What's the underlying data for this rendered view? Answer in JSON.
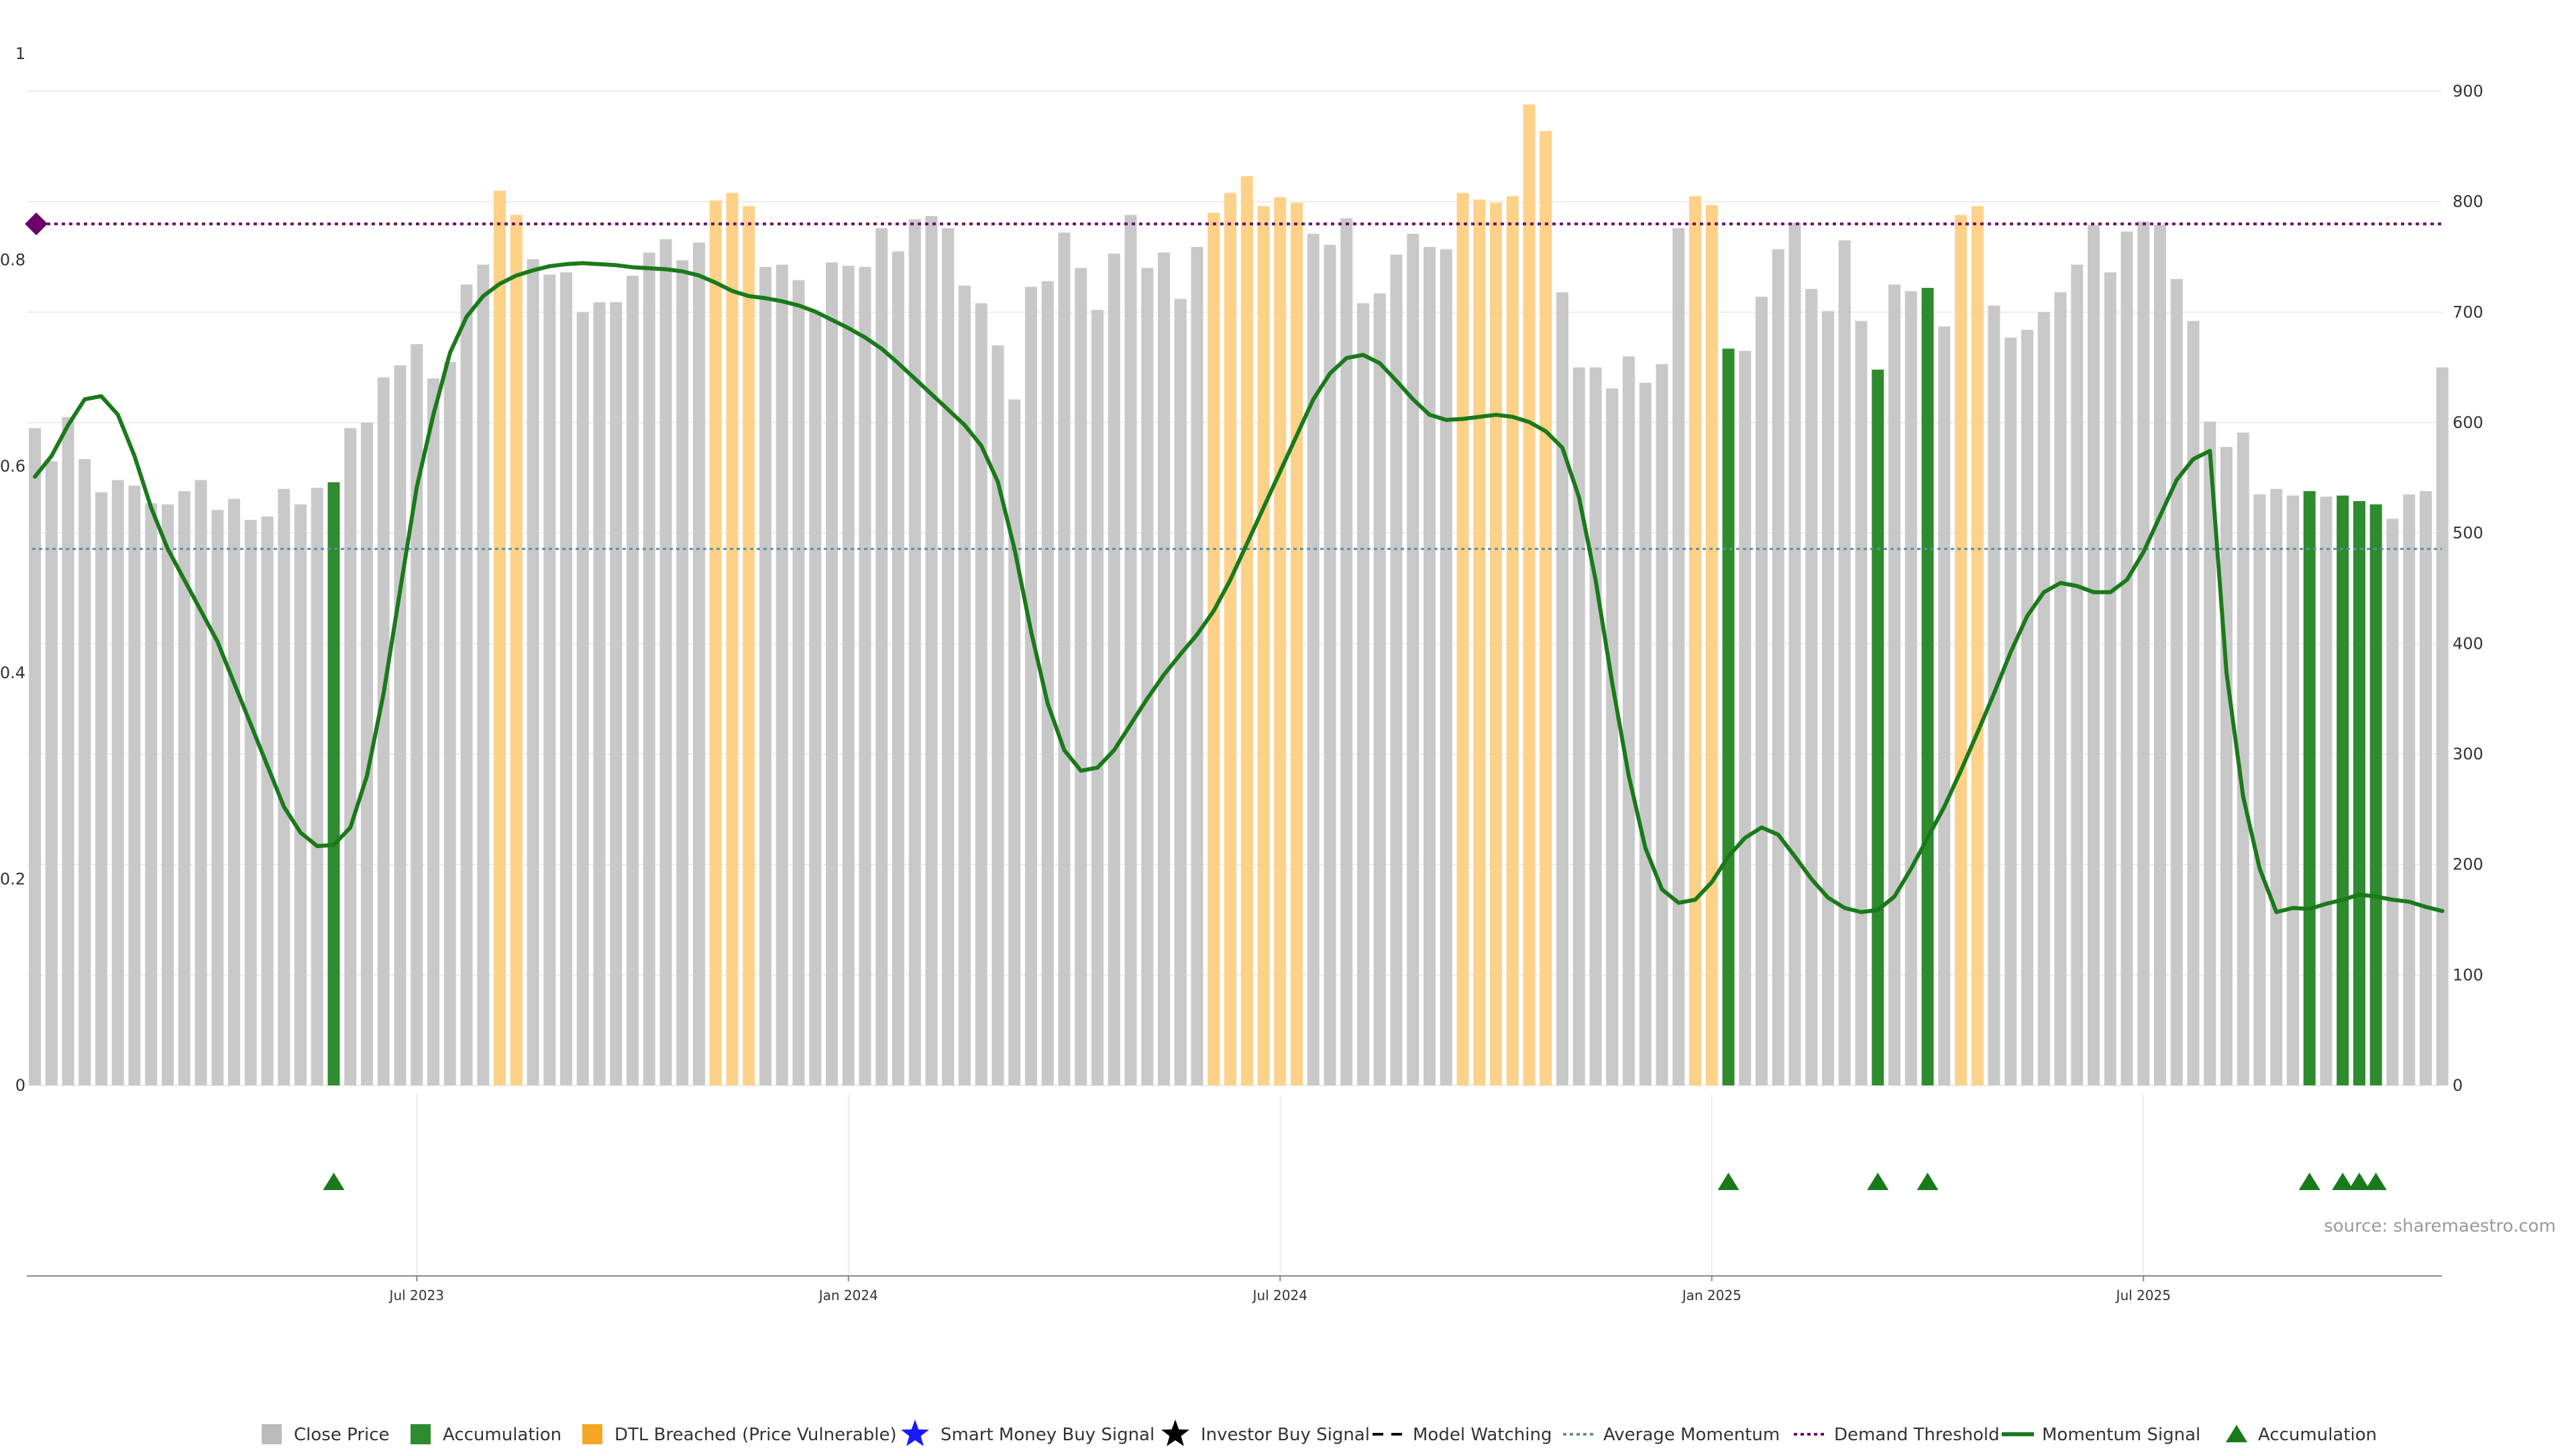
{
  "chart_data": {
    "type": "bar",
    "title": "",
    "source": "source: sharemaestro.com",
    "left_axis": {
      "ylim": [
        0,
        1
      ],
      "ticks": [
        "0",
        "0.2",
        "0.4",
        "0.6",
        "0.8",
        "1"
      ]
    },
    "right_axis": {
      "ylim": [
        0,
        900
      ],
      "ticks": [
        "0",
        "100",
        "200",
        "300",
        "400",
        "500",
        "600",
        "700",
        "800",
        "900"
      ]
    },
    "date_ticks": [
      {
        "label": "Jul 2023",
        "index": 23
      },
      {
        "label": "Jan 2024",
        "index": 49
      },
      {
        "label": "Jul 2024",
        "index": 75
      },
      {
        "label": "Jan 2025",
        "index": 101
      },
      {
        "label": "Jul 2025",
        "index": 127
      }
    ],
    "bar_count": 146,
    "close_price": [
      595,
      565,
      605,
      567,
      537,
      548,
      543,
      527,
      526,
      538,
      548,
      521,
      531,
      512,
      515,
      540,
      526,
      541,
      546,
      595,
      600,
      641,
      652,
      671,
      640,
      655,
      725,
      743,
      810,
      788,
      748,
      734,
      736,
      700,
      709,
      709,
      733,
      754,
      766,
      747,
      763,
      801,
      808,
      796,
      741,
      743,
      729,
      700,
      745,
      742,
      741,
      776,
      755,
      784,
      787,
      776,
      724,
      708,
      670,
      621,
      723,
      728,
      772,
      740,
      702,
      753,
      788,
      740,
      754,
      712,
      759,
      790,
      808,
      823,
      796,
      804,
      799,
      771,
      761,
      785,
      708,
      717,
      752,
      771,
      759,
      757,
      808,
      802,
      799,
      805,
      888,
      864,
      718,
      650,
      650,
      631,
      660,
      636,
      653,
      776,
      805,
      797,
      667,
      665,
      714,
      757,
      781,
      721,
      701,
      765,
      692,
      648,
      725,
      719,
      722,
      687,
      788,
      796,
      706,
      677,
      684,
      700,
      718,
      743,
      779,
      736,
      773,
      782,
      779,
      730,
      692,
      601,
      578,
      591,
      535,
      540,
      534,
      538,
      533,
      534,
      529,
      526,
      513,
      535,
      538,
      650
    ],
    "series_state": [
      "C",
      "C",
      "C",
      "C",
      "C",
      "C",
      "C",
      "C",
      "C",
      "C",
      "C",
      "C",
      "C",
      "C",
      "C",
      "C",
      "C",
      "C",
      "A",
      "C",
      "C",
      "C",
      "C",
      "C",
      "C",
      "C",
      "C",
      "C",
      "D",
      "D",
      "C",
      "C",
      "C",
      "C",
      "C",
      "C",
      "C",
      "C",
      "C",
      "C",
      "C",
      "D",
      "D",
      "D",
      "C",
      "C",
      "C",
      "C",
      "C",
      "C",
      "C",
      "C",
      "C",
      "C",
      "C",
      "C",
      "C",
      "C",
      "C",
      "C",
      "C",
      "C",
      "C",
      "C",
      "C",
      "C",
      "C",
      "C",
      "C",
      "C",
      "C",
      "D",
      "D",
      "D",
      "D",
      "D",
      "D",
      "C",
      "C",
      "C",
      "C",
      "C",
      "C",
      "C",
      "C",
      "C",
      "D",
      "D",
      "D",
      "D",
      "D",
      "D",
      "C",
      "C",
      "C",
      "C",
      "C",
      "C",
      "C",
      "C",
      "D",
      "D",
      "A",
      "C",
      "C",
      "C",
      "C",
      "C",
      "C",
      "C",
      "C",
      "A",
      "C",
      "C",
      "A",
      "C",
      "D",
      "D",
      "C",
      "C",
      "C",
      "C",
      "C",
      "C",
      "C",
      "C",
      "C",
      "C",
      "C",
      "C",
      "C",
      "C",
      "C",
      "C",
      "C",
      "C",
      "C",
      "A",
      "C",
      "A",
      "A",
      "A",
      "C",
      "C",
      "C",
      "C"
    ],
    "momentum_signal": [
      [
        0,
        0.59
      ],
      [
        1,
        0.61
      ],
      [
        2,
        0.64
      ],
      [
        3,
        0.665
      ],
      [
        4,
        0.668
      ],
      [
        5,
        0.65
      ],
      [
        6,
        0.61
      ],
      [
        7,
        0.56
      ],
      [
        8,
        0.52
      ],
      [
        9,
        0.49
      ],
      [
        10,
        0.46
      ],
      [
        11,
        0.43
      ],
      [
        12,
        0.39
      ],
      [
        13,
        0.35
      ],
      [
        14,
        0.31
      ],
      [
        15,
        0.27
      ],
      [
        16,
        0.245
      ],
      [
        17,
        0.232
      ],
      [
        18,
        0.233
      ],
      [
        19,
        0.25
      ],
      [
        20,
        0.3
      ],
      [
        21,
        0.38
      ],
      [
        22,
        0.48
      ],
      [
        23,
        0.58
      ],
      [
        24,
        0.65
      ],
      [
        25,
        0.71
      ],
      [
        26,
        0.745
      ],
      [
        27,
        0.765
      ],
      [
        28,
        0.777
      ],
      [
        29,
        0.785
      ],
      [
        30,
        0.79
      ],
      [
        31,
        0.794
      ],
      [
        32,
        0.796
      ],
      [
        33,
        0.797
      ],
      [
        34,
        0.796
      ],
      [
        35,
        0.795
      ],
      [
        36,
        0.793
      ],
      [
        37,
        0.792
      ],
      [
        38,
        0.791
      ],
      [
        39,
        0.789
      ],
      [
        40,
        0.785
      ],
      [
        41,
        0.778
      ],
      [
        42,
        0.77
      ],
      [
        43,
        0.765
      ],
      [
        44,
        0.763
      ],
      [
        45,
        0.76
      ],
      [
        46,
        0.756
      ],
      [
        47,
        0.75
      ],
      [
        48,
        0.742
      ],
      [
        49,
        0.734
      ],
      [
        50,
        0.725
      ],
      [
        51,
        0.714
      ],
      [
        52,
        0.7
      ],
      [
        53,
        0.685
      ],
      [
        54,
        0.67
      ],
      [
        55,
        0.655
      ],
      [
        56,
        0.64
      ],
      [
        57,
        0.62
      ],
      [
        58,
        0.585
      ],
      [
        59,
        0.52
      ],
      [
        60,
        0.44
      ],
      [
        61,
        0.37
      ],
      [
        62,
        0.325
      ],
      [
        63,
        0.305
      ],
      [
        64,
        0.308
      ],
      [
        65,
        0.325
      ],
      [
        66,
        0.35
      ],
      [
        67,
        0.375
      ],
      [
        68,
        0.398
      ],
      [
        69,
        0.418
      ],
      [
        70,
        0.437
      ],
      [
        71,
        0.46
      ],
      [
        72,
        0.49
      ],
      [
        73,
        0.525
      ],
      [
        74,
        0.56
      ],
      [
        75,
        0.595
      ],
      [
        76,
        0.63
      ],
      [
        77,
        0.665
      ],
      [
        78,
        0.69
      ],
      [
        79,
        0.705
      ],
      [
        80,
        0.708
      ],
      [
        81,
        0.7
      ],
      [
        82,
        0.683
      ],
      [
        83,
        0.665
      ],
      [
        84,
        0.65
      ],
      [
        85,
        0.645
      ],
      [
        86,
        0.646
      ],
      [
        87,
        0.648
      ],
      [
        88,
        0.65
      ],
      [
        89,
        0.648
      ],
      [
        90,
        0.643
      ],
      [
        91,
        0.634
      ],
      [
        92,
        0.618
      ],
      [
        93,
        0.57
      ],
      [
        94,
        0.49
      ],
      [
        95,
        0.39
      ],
      [
        96,
        0.3
      ],
      [
        97,
        0.23
      ],
      [
        98,
        0.19
      ],
      [
        99,
        0.177
      ],
      [
        100,
        0.18
      ],
      [
        101,
        0.197
      ],
      [
        102,
        0.222
      ],
      [
        103,
        0.24
      ],
      [
        104,
        0.25
      ],
      [
        105,
        0.243
      ],
      [
        106,
        0.222
      ],
      [
        107,
        0.2
      ],
      [
        108,
        0.182
      ],
      [
        109,
        0.172
      ],
      [
        110,
        0.168
      ],
      [
        111,
        0.17
      ],
      [
        112,
        0.183
      ],
      [
        113,
        0.21
      ],
      [
        114,
        0.24
      ],
      [
        115,
        0.27
      ],
      [
        116,
        0.305
      ],
      [
        117,
        0.342
      ],
      [
        118,
        0.38
      ],
      [
        119,
        0.42
      ],
      [
        120,
        0.455
      ],
      [
        121,
        0.478
      ],
      [
        122,
        0.487
      ],
      [
        123,
        0.484
      ],
      [
        124,
        0.478
      ],
      [
        125,
        0.478
      ],
      [
        126,
        0.49
      ],
      [
        127,
        0.517
      ],
      [
        128,
        0.552
      ],
      [
        129,
        0.587
      ],
      [
        130,
        0.607
      ],
      [
        131,
        0.615
      ],
      [
        132,
        0.4
      ],
      [
        133,
        0.28
      ],
      [
        134,
        0.21
      ],
      [
        135,
        0.168
      ],
      [
        136,
        0.172
      ],
      [
        137,
        0.171
      ],
      [
        138,
        0.176
      ],
      [
        139,
        0.18
      ],
      [
        140,
        0.185
      ],
      [
        141,
        0.183
      ],
      [
        142,
        0.18
      ],
      [
        143,
        0.178
      ],
      [
        144,
        0.173
      ],
      [
        145,
        0.169
      ]
    ],
    "average_momentum": 0.52,
    "demand_threshold": 0.835,
    "accumulation_markers": [
      18,
      102,
      111,
      114,
      137,
      139,
      140,
      141
    ],
    "legend": [
      {
        "label": "Close Price",
        "marker": "square",
        "color": "#bbbbbb"
      },
      {
        "label": "Accumulation",
        "marker": "square",
        "color": "#2e8b2e"
      },
      {
        "label": "DTL Breached (Price Vulnerable)",
        "marker": "square",
        "color": "#f5a623"
      },
      {
        "label": "Smart Money Buy Signal",
        "marker": "star",
        "color": "#1a1aff"
      },
      {
        "label": "Investor Buy Signal",
        "marker": "star",
        "color": "#000000"
      },
      {
        "label": "Model Watching",
        "marker": "dashed-line",
        "color": "#000000"
      },
      {
        "label": "Average Momentum",
        "marker": "dotted-line",
        "color": "#5b8fa8"
      },
      {
        "label": "Demand Threshold",
        "marker": "dotted-line",
        "color": "#6b006b"
      },
      {
        "label": "Momentum Signal",
        "marker": "solid-line",
        "color": "#1a7a1a"
      },
      {
        "label": "Accumulation",
        "marker": "triangle",
        "color": "#1a7a1a"
      }
    ],
    "colors": {
      "close": "#c8c8c8",
      "accumulation": "#2e8b2e",
      "dtl": "#fdd188",
      "momentum": "#1a7a1a",
      "average": "#5b8fa8",
      "threshold": "#6b006b",
      "grid": "#e6e6e6"
    }
  }
}
